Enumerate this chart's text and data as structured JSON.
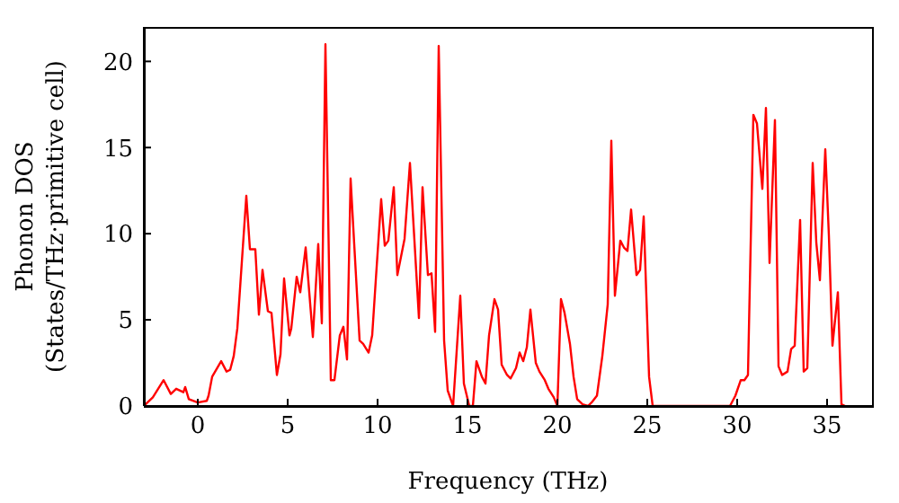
{
  "chart_data": {
    "type": "line",
    "xlabel": "Frequency (THz)",
    "ylabel": "Phonon DOS\n(States/THz·primitive cell)",
    "xlim": [
      -3,
      37.5
    ],
    "ylim": [
      0,
      22
    ],
    "xticks": [
      0,
      5,
      10,
      15,
      20,
      25,
      30,
      35
    ],
    "yticks": [
      0,
      5,
      10,
      15,
      20
    ],
    "marker": "none",
    "line_style": "solid",
    "x": [
      -3,
      -2.5,
      -1.9,
      -1.5,
      -1.2,
      -0.8,
      -0.7,
      -0.5,
      0,
      0.5,
      0.6,
      0.8,
      1.3,
      1.6,
      1.8,
      2.0,
      2.2,
      2.7,
      2.9,
      3.2,
      3.4,
      3.6,
      3.9,
      4.1,
      4.4,
      4.6,
      4.8,
      5.1,
      5.2,
      5.5,
      5.7,
      6.0,
      6.2,
      6.4,
      6.7,
      6.9,
      7.1,
      7.4,
      7.6,
      7.9,
      8.1,
      8.3,
      8.5,
      8.7,
      9.0,
      9.2,
      9.5,
      9.7,
      9.9,
      10.2,
      10.4,
      10.6,
      10.9,
      11.1,
      11.5,
      11.8,
      12.3,
      12.5,
      12.8,
      13.0,
      13.2,
      13.4,
      13.7,
      13.9,
      14.2,
      14.6,
      14.8,
      15.1,
      15.3,
      15.5,
      15.8,
      16.0,
      16.2,
      16.5,
      16.7,
      16.9,
      17.2,
      17.4,
      17.7,
      17.9,
      18.1,
      18.3,
      18.5,
      18.8,
      19.0,
      19.3,
      19.5,
      19.8,
      20.0,
      20.2,
      20.4,
      20.7,
      20.9,
      21.1,
      21.4,
      21.7,
      21.9,
      22.2,
      22.5,
      22.8,
      23.0,
      23.2,
      23.5,
      23.7,
      23.9,
      24.1,
      24.4,
      24.6,
      24.8,
      25.1,
      25.3,
      29.6,
      29.9,
      30.2,
      30.4,
      30.6,
      30.9,
      31.1,
      31.4,
      31.6,
      31.8,
      32.1,
      32.3,
      32.5,
      32.8,
      33.0,
      33.2,
      33.5,
      33.7,
      33.9,
      34.2,
      34.4,
      34.6,
      34.9,
      35.1,
      35.3,
      35.6,
      35.8,
      36.0
    ],
    "series": [
      {
        "color": "#ff0000",
        "values": [
          0,
          0.5,
          1.5,
          0.7,
          1.0,
          0.8,
          1.1,
          0.4,
          0.2,
          0.3,
          0.6,
          1.7,
          2.6,
          2.0,
          2.1,
          2.9,
          4.5,
          12.2,
          9.1,
          9.1,
          5.3,
          7.9,
          5.5,
          5.4,
          1.8,
          3.0,
          7.4,
          4.1,
          4.5,
          7.5,
          6.6,
          9.2,
          6.6,
          4.0,
          9.4,
          4.8,
          21.0,
          1.5,
          1.5,
          4.1,
          4.6,
          2.7,
          13.2,
          9.4,
          3.8,
          3.6,
          3.1,
          4.1,
          7.3,
          12.0,
          9.3,
          9.6,
          12.7,
          7.6,
          9.7,
          14.1,
          5.1,
          12.7,
          7.6,
          7.7,
          4.3,
          20.9,
          3.8,
          0.9,
          0,
          6.4,
          1.3,
          0,
          0,
          2.6,
          1.7,
          1.3,
          4.1,
          6.2,
          5.6,
          2.4,
          1.8,
          1.6,
          2.2,
          3.1,
          2.6,
          3.4,
          5.6,
          2.5,
          2.0,
          1.5,
          1.0,
          0.5,
          0,
          6.2,
          5.4,
          3.6,
          1.7,
          0.4,
          0.1,
          0,
          0.2,
          0.6,
          2.9,
          5.9,
          15.4,
          6.4,
          9.6,
          9.2,
          9.0,
          11.4,
          7.6,
          7.9,
          11.0,
          1.7,
          0,
          0,
          0.6,
          1.5,
          1.5,
          1.8,
          16.9,
          16.4,
          12.6,
          17.3,
          8.3,
          16.6,
          2.3,
          1.8,
          2.0,
          3.3,
          3.5,
          10.8,
          2.0,
          2.2,
          14.1,
          9.5,
          7.3,
          14.9,
          9.9,
          3.5,
          6.6,
          0.1,
          0
        ]
      }
    ]
  }
}
